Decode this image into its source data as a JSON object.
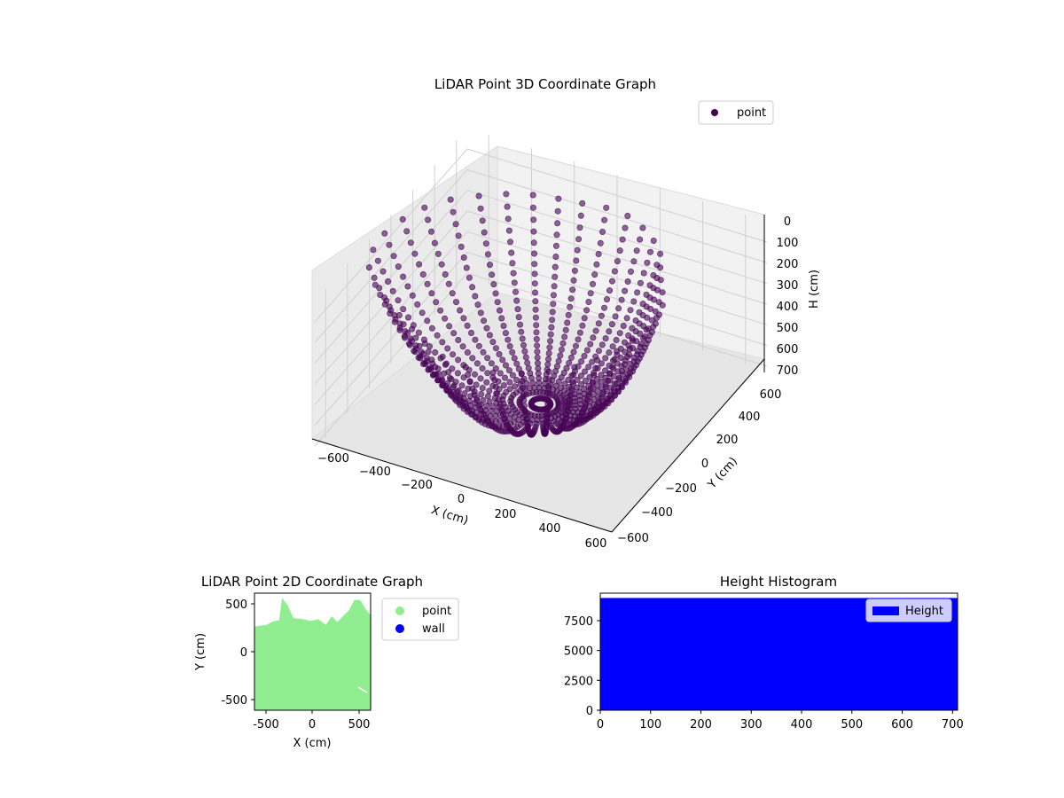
{
  "chart_data": [
    {
      "type": "scatter",
      "projection": "3d",
      "title": "LiDAR Point 3D Coordinate Graph",
      "xlabel": "X (cm)",
      "ylabel": "Y (cm)",
      "zlabel": "H (cm)",
      "xlim": [
        -700,
        700
      ],
      "ylim": [
        -700,
        700
      ],
      "zlim": [
        720,
        0
      ],
      "z_axis_inverted": true,
      "x_ticks": [
        "−600",
        "−400",
        "−200",
        "0",
        "200",
        "400",
        "600"
      ],
      "y_ticks": [
        "−600",
        "−400",
        "−200",
        "0",
        "200",
        "400",
        "600"
      ],
      "z_ticks": [
        "0",
        "100",
        "200",
        "300",
        "400",
        "500",
        "600",
        "700"
      ],
      "grid": true,
      "legend": {
        "placement": "top-right",
        "entries": [
          {
            "name": "point",
            "color": "#440154"
          }
        ]
      },
      "series": [
        {
          "name": "point",
          "color": "#440154",
          "description_points": {
            "rays": [
              {
                "azimuth_deg": 0,
                "reach": 500
              },
              {
                "azimuth_deg": 10,
                "reach": 490
              },
              {
                "azimuth_deg": 20,
                "reach": 470
              },
              {
                "azimuth_deg": 30,
                "reach": 460
              },
              {
                "azimuth_deg": 40,
                "reach": 470
              },
              {
                "azimuth_deg": 50,
                "reach": 500
              },
              {
                "azimuth_deg": 60,
                "reach": 520
              },
              {
                "azimuth_deg": 70,
                "reach": 540
              },
              {
                "azimuth_deg": 80,
                "reach": 560
              },
              {
                "azimuth_deg": 90,
                "reach": 560
              },
              {
                "azimuth_deg": 100,
                "reach": 550
              },
              {
                "azimuth_deg": 110,
                "reach": 560
              },
              {
                "azimuth_deg": 120,
                "reach": 580
              },
              {
                "azimuth_deg": 130,
                "reach": 600
              },
              {
                "azimuth_deg": 140,
                "reach": 620
              },
              {
                "azimuth_deg": 150,
                "reach": 650
              },
              {
                "azimuth_deg": 160,
                "reach": 670
              },
              {
                "azimuth_deg": 170,
                "reach": 680
              },
              {
                "azimuth_deg": 180,
                "reach": 690
              },
              {
                "azimuth_deg": 190,
                "reach": 690
              },
              {
                "azimuth_deg": 200,
                "reach": 680
              },
              {
                "azimuth_deg": 210,
                "reach": 650
              },
              {
                "azimuth_deg": 220,
                "reach": 620
              },
              {
                "azimuth_deg": 230,
                "reach": 600
              },
              {
                "azimuth_deg": 240,
                "reach": 600
              },
              {
                "azimuth_deg": 250,
                "reach": 620
              },
              {
                "azimuth_deg": 260,
                "reach": 640
              },
              {
                "azimuth_deg": 270,
                "reach": 650
              },
              {
                "azimuth_deg": 280,
                "reach": 640
              },
              {
                "azimuth_deg": 290,
                "reach": 620
              },
              {
                "azimuth_deg": 300,
                "reach": 600
              },
              {
                "azimuth_deg": 310,
                "reach": 580
              },
              {
                "azimuth_deg": 320,
                "reach": 560
              },
              {
                "azimuth_deg": 330,
                "reach": 540
              },
              {
                "azimuth_deg": 340,
                "reach": 520
              },
              {
                "azimuth_deg": 350,
                "reach": 510
              }
            ],
            "top_h": 100,
            "bottom_h": 690
          }
        }
      ]
    },
    {
      "type": "scatter",
      "title": "LiDAR Point 2D Coordinate Graph",
      "xlabel": "X (cm)",
      "ylabel": "Y (cm)",
      "xlim": [
        -610,
        610
      ],
      "ylim": [
        -610,
        610
      ],
      "x_ticks": [
        -500,
        0,
        500
      ],
      "y_ticks": [
        -500,
        0,
        500
      ],
      "legend": {
        "placement": "outside-right",
        "entries": [
          {
            "name": "point",
            "color": "#90ee90"
          },
          {
            "name": "wall",
            "color": "#0000ff"
          }
        ]
      },
      "series": [
        {
          "name": "point",
          "color": "#90ee90",
          "region_outline": [
            [
              -610,
              260
            ],
            [
              -560,
              270
            ],
            [
              -480,
              280
            ],
            [
              -430,
              310
            ],
            [
              -350,
              330
            ],
            [
              -320,
              560
            ],
            [
              -260,
              480
            ],
            [
              -200,
              350
            ],
            [
              -100,
              340
            ],
            [
              -20,
              320
            ],
            [
              60,
              340
            ],
            [
              140,
              280
            ],
            [
              200,
              370
            ],
            [
              260,
              310
            ],
            [
              330,
              380
            ],
            [
              380,
              430
            ],
            [
              440,
              540
            ],
            [
              500,
              540
            ],
            [
              560,
              440
            ],
            [
              610,
              380
            ],
            [
              610,
              -610
            ],
            [
              -610,
              -610
            ]
          ]
        },
        {
          "name": "wall",
          "color": "#0000ff",
          "points": []
        }
      ]
    },
    {
      "type": "bar",
      "subtype": "histogram",
      "title": "Height Histogram",
      "xlim": [
        0,
        710
      ],
      "ylim": [
        0,
        9800
      ],
      "x_ticks": [
        0,
        100,
        200,
        300,
        400,
        500,
        600,
        700
      ],
      "y_ticks": [
        0,
        2500,
        5000,
        7500
      ],
      "legend": {
        "placement": "top-right",
        "entries": [
          {
            "name": "Height",
            "color": "#0000ff"
          }
        ]
      },
      "series": [
        {
          "name": "Height",
          "color": "#0000ff",
          "bin_range": [
            0,
            710
          ],
          "value": 9400
        }
      ]
    }
  ]
}
